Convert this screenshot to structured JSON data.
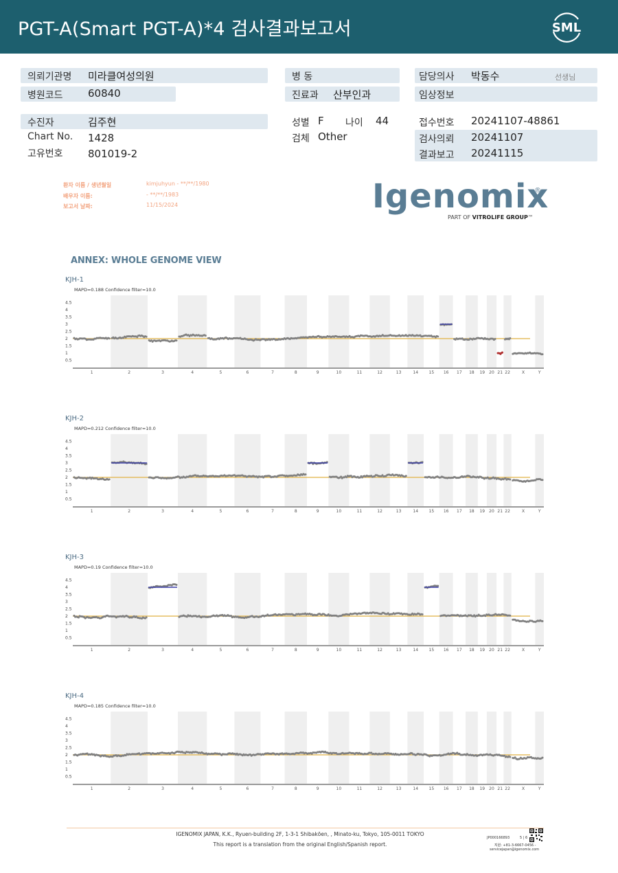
{
  "header": {
    "title": "PGT-A(Smart  PGT-A)*4 검사결과보고서",
    "logo_text": "SML"
  },
  "info": {
    "institution_label": "의뢰기관명",
    "institution": "미라클여성의원",
    "hospital_code_label": "병원코드",
    "hospital_code": "60840",
    "ward_label": "병  동",
    "ward": "",
    "department_label": "진료과",
    "department": "산부인과",
    "doctor_label": "담당의사",
    "doctor": "박동수",
    "doctor_suffix": "선생님",
    "clinical_info_label": "임상정보",
    "clinical_info": "",
    "patient_label": "수진자",
    "patient": "김주현",
    "chart_label": "Chart No.",
    "chart": "1428",
    "unique_label": "고유번호",
    "unique": "801019-2",
    "sex_label": "성별",
    "sex": "F",
    "age_label": "나이",
    "age": "44",
    "specimen_label": "검체",
    "specimen": "Other",
    "receipt_label": "접수번호",
    "receipt": "20241107-48861",
    "request_label": "검사의뢰",
    "request": "20241107",
    "report_label": "결과보고",
    "report": "20241115"
  },
  "report_meta": {
    "patient_name_label": "환자 이름 / 생년월일",
    "patient_name": "kimjuhyun - **/**/1980",
    "partner_label": "배우자 이름:",
    "partner": " - **/**/1983",
    "date_label": "보고서 날짜:",
    "date": "11/15/2024"
  },
  "igenomix": {
    "wordmark": "Igenomix",
    "registered": "®",
    "tagline_prefix": "PART OF ",
    "tagline_brand": "VITROLIFE GROUP",
    "tagline_tm": "™"
  },
  "annex_title": "ANNEX: WHOLE GENOME VIEW",
  "chart_data": [
    {
      "type": "scatter",
      "title": "KJH-1",
      "subtitle": "MAPD=0.188 Confidence filter=10.0",
      "x_categories": [
        "1",
        "2",
        "3",
        "4",
        "5",
        "6",
        "7",
        "8",
        "9",
        "10",
        "11",
        "12",
        "13",
        "14",
        "15",
        "16",
        "17",
        "18",
        "19",
        "20",
        "21",
        "22",
        "X",
        "Y"
      ],
      "y_ticks": [
        "4.5",
        "4",
        "3.5",
        "3",
        "2.5",
        "2",
        "1.5",
        "1",
        "0.5"
      ],
      "ylim": [
        0,
        5
      ],
      "reference_line": 2,
      "segments": [
        {
          "from": "1",
          "to": "1",
          "copy_number": 2.0
        },
        {
          "from": "2",
          "to": "2",
          "copy_number": 2.05
        },
        {
          "from": "3",
          "to": "3",
          "copy_number": 1.9
        },
        {
          "from": "4",
          "to": "4",
          "copy_number": 2.2
        },
        {
          "from": "5",
          "to": "15",
          "copy_number": 2.0
        },
        {
          "from": "16",
          "to": "16",
          "copy_number": 3.0,
          "call": "gain"
        },
        {
          "from": "17",
          "to": "20",
          "copy_number": 2.0
        },
        {
          "from": "21",
          "to": "21",
          "copy_number": 1.0,
          "call": "loss"
        },
        {
          "from": "22",
          "to": "22",
          "copy_number": 2.0
        },
        {
          "from": "X",
          "to": "Y",
          "copy_number": 0.95
        }
      ]
    },
    {
      "type": "scatter",
      "title": "KJH-2",
      "subtitle": "MAPD=0.212 Confidence filter=10.0",
      "x_categories": [
        "1",
        "2",
        "3",
        "4",
        "5",
        "6",
        "7",
        "8",
        "9",
        "10",
        "11",
        "12",
        "13",
        "14",
        "15",
        "16",
        "17",
        "18",
        "19",
        "20",
        "21",
        "22",
        "X",
        "Y"
      ],
      "y_ticks": [
        "4.5",
        "4",
        "3.5",
        "3",
        "2.5",
        "2",
        "1.5",
        "1",
        "0.5"
      ],
      "ylim": [
        0,
        5
      ],
      "reference_line": 2,
      "segments": [
        {
          "from": "1",
          "to": "1",
          "copy_number": 2.0
        },
        {
          "from": "2",
          "to": "2",
          "copy_number": 3.0,
          "call": "gain"
        },
        {
          "from": "3",
          "to": "8",
          "copy_number": 2.0
        },
        {
          "from": "9",
          "to": "9",
          "copy_number": 3.0,
          "call": "gain"
        },
        {
          "from": "10",
          "to": "13",
          "copy_number": 2.0
        },
        {
          "from": "14",
          "to": "14",
          "copy_number": 3.0,
          "call": "gain"
        },
        {
          "from": "15",
          "to": "22",
          "copy_number": 2.0
        },
        {
          "from": "X",
          "to": "Y",
          "copy_number": 1.75
        }
      ]
    },
    {
      "type": "scatter",
      "title": "KJH-3",
      "subtitle": "MAPD=0.19 Confidence filter=10.0",
      "x_categories": [
        "1",
        "2",
        "3",
        "4",
        "5",
        "6",
        "7",
        "8",
        "9",
        "10",
        "11",
        "12",
        "13",
        "14",
        "15",
        "16",
        "17",
        "18",
        "19",
        "20",
        "21",
        "22",
        "X",
        "Y"
      ],
      "y_ticks": [
        "4.5",
        "4",
        "3.5",
        "3",
        "2.5",
        "2",
        "1.5",
        "1",
        "0.5"
      ],
      "ylim": [
        0,
        5
      ],
      "reference_line": 2,
      "segments": [
        {
          "from": "1",
          "to": "2",
          "copy_number": 2.0
        },
        {
          "from": "3",
          "to": "3",
          "copy_number": 4.0,
          "call": "gain"
        },
        {
          "from": "4",
          "to": "14",
          "copy_number": 2.0
        },
        {
          "from": "15",
          "to": "15",
          "copy_number": 4.0,
          "call": "gain"
        },
        {
          "from": "16",
          "to": "22",
          "copy_number": 2.0
        },
        {
          "from": "X",
          "to": "Y",
          "copy_number": 1.75
        }
      ]
    },
    {
      "type": "scatter",
      "title": "KJH-4",
      "subtitle": "MAPD=0.185 Confidence filter=10.0",
      "x_categories": [
        "1",
        "2",
        "3",
        "4",
        "5",
        "6",
        "7",
        "8",
        "9",
        "10",
        "11",
        "12",
        "13",
        "14",
        "15",
        "16",
        "17",
        "18",
        "19",
        "20",
        "21",
        "22",
        "X",
        "Y"
      ],
      "y_ticks": [
        "4.5",
        "4",
        "3.5",
        "3",
        "2.5",
        "2",
        "1.5",
        "1",
        "0.5"
      ],
      "ylim": [
        0,
        5
      ],
      "reference_line": 2,
      "segments": [
        {
          "from": "1",
          "to": "22",
          "copy_number": 2.0
        },
        {
          "from": "X",
          "to": "Y",
          "copy_number": 1.75
        }
      ]
    }
  ],
  "footer": {
    "address": "IGENOMIX JAPAN, K.K., Ryuen-building 2F, 1-3-1 Shibakōen, , Minato-ku, Tokyo, 105-0011 TOKYO",
    "note": "This report is a translation from the original English/Spanish report.",
    "doc_code": "JP000166893",
    "page": "5 | 6",
    "phone": "지원: +81-3-6667-0456 -",
    "email": "servicejapan@igenomix.com"
  },
  "colors": {
    "header_bg": "#1d5f6e",
    "band": "#dfe8ef",
    "reference": "#e0b041",
    "gain": "#3b3fa8",
    "loss": "#b03030",
    "points": "#808080"
  }
}
